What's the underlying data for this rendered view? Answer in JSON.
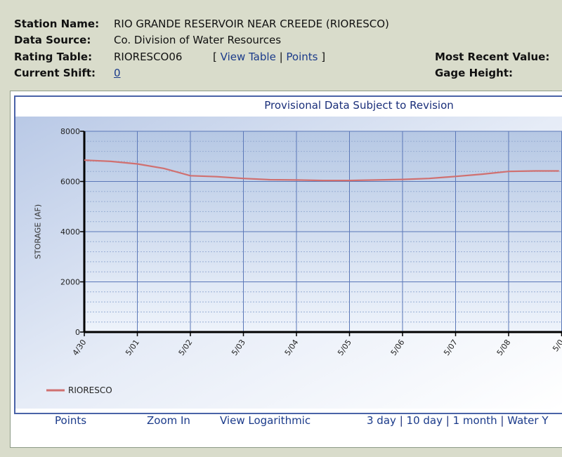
{
  "header": {
    "station_label": "Station Name:",
    "station_value": "RIO GRANDE RESERVOIR NEAR CREEDE (RIORESCO)",
    "source_label": "Data Source:",
    "source_value": "Co. Division of Water Resources",
    "rating_label": "Rating Table:",
    "rating_value": "RIORESCO06",
    "bracket_open": "[",
    "view_table_link": "View Table",
    "pipe": "|",
    "points_link": "Points",
    "bracket_close": "]",
    "shift_label": "Current Shift:",
    "shift_value": "0",
    "recent_label": "Most Recent Value:",
    "gage_label": "Gage Height:"
  },
  "bottom_bar": {
    "points": "Points",
    "zoom_in": "Zoom In",
    "view_log": "View Logarithmic",
    "range_3day": "3 day",
    "range_10day": "10 day",
    "range_1month": "1 month",
    "range_water_year": "Water Y",
    "sep": "|"
  },
  "chart_data": {
    "type": "line",
    "title": "Provisional Data Subject to Revision",
    "ylabel": "STORAGE (AF)",
    "xlabel": "",
    "ylim": [
      0,
      8000
    ],
    "yticks": [
      "0",
      "2000",
      "4000",
      "6000",
      "8000"
    ],
    "categories": [
      "4/30",
      "5/01",
      "5/02",
      "5/03",
      "5/04",
      "5/05",
      "5/06",
      "5/07",
      "5/08",
      "5/0"
    ],
    "series": [
      {
        "name": "RIORESCO",
        "color": "#d07070",
        "x": [
          0,
          0.5,
          1.0,
          1.5,
          2.0,
          2.5,
          3.0,
          3.5,
          4.0,
          4.5,
          5.0,
          5.5,
          6.0,
          6.5,
          7.0,
          7.5,
          8.0,
          8.5,
          8.95
        ],
        "values": [
          6850,
          6800,
          6700,
          6520,
          6230,
          6190,
          6120,
          6070,
          6060,
          6040,
          6040,
          6060,
          6080,
          6120,
          6200,
          6290,
          6400,
          6420,
          6420
        ]
      }
    ],
    "grid": true,
    "legend_position": "bottom-left"
  }
}
